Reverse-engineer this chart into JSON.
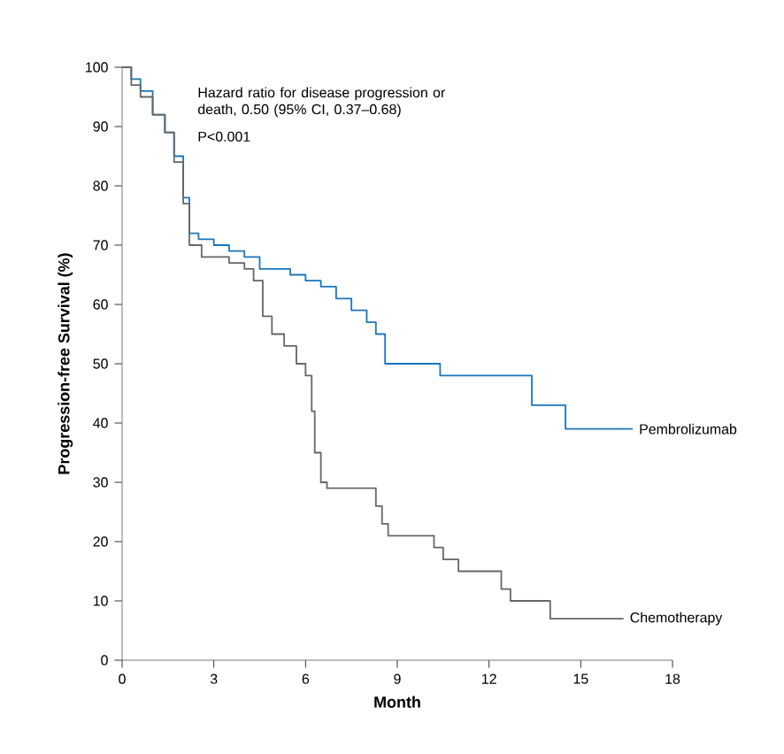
{
  "chart_data": {
    "type": "step",
    "xlabel": "Month",
    "ylabel": "Progression-free Survival (%)",
    "annotations": [
      "Hazard ratio for disease progression or death, 0.50 (95% CI, 0.37–0.68)",
      "P<0.001"
    ],
    "xlim": [
      0,
      18
    ],
    "xticks": [
      0,
      3,
      6,
      9,
      12,
      15,
      18
    ],
    "ylim": [
      0,
      100
    ],
    "yticks": [
      0,
      10,
      20,
      30,
      40,
      50,
      60,
      70,
      80,
      90,
      100
    ],
    "grid": false,
    "marker": "none",
    "line_style": "solid",
    "series": [
      {
        "name": "Pembrolizumab",
        "color": "#1a75bc",
        "x": [
          0,
          0.3,
          0.6,
          1.0,
          1.4,
          1.7,
          2.0,
          2.2,
          2.5,
          3.0,
          3.5,
          4.0,
          4.5,
          5.5,
          6.0,
          6.5,
          7.0,
          7.5,
          8.0,
          8.3,
          8.6,
          10.4,
          13.4,
          14.5,
          16.7
        ],
        "values": [
          100,
          98,
          96,
          92,
          89,
          85,
          78,
          72,
          71,
          70,
          69,
          68,
          66,
          65,
          64,
          63,
          61,
          59,
          57,
          55,
          50,
          48,
          43,
          39,
          39
        ]
      },
      {
        "name": "Chemotherapy",
        "color": "#666666",
        "x": [
          0,
          0.3,
          0.6,
          1.0,
          1.4,
          1.7,
          2.0,
          2.2,
          2.6,
          3.5,
          4.0,
          4.3,
          4.6,
          4.9,
          5.3,
          5.7,
          6.0,
          6.2,
          6.3,
          6.5,
          6.7,
          8.3,
          8.5,
          8.7,
          10.2,
          10.5,
          11.0,
          12.4,
          12.7,
          14.0,
          16.4
        ],
        "values": [
          100,
          97,
          95,
          92,
          89,
          84,
          77,
          70,
          68,
          67,
          66,
          64,
          58,
          55,
          53,
          50,
          48,
          42,
          35,
          30,
          29,
          26,
          23,
          21,
          19,
          17,
          15,
          12,
          10,
          7,
          7
        ]
      }
    ]
  }
}
